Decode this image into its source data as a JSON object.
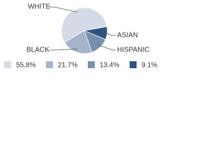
{
  "chart_data": {
    "type": "pie",
    "categories": [
      "WHITE",
      "BLACK",
      "HISPANIC",
      "ASIAN"
    ],
    "values": [
      55.8,
      21.7,
      13.4,
      9.1
    ],
    "value_labels": [
      "55.8%",
      "21.7%",
      "13.4%",
      "9.1%"
    ],
    "colors": [
      "#d4dbe6",
      "#a5b4c9",
      "#7890ad",
      "#2d5480"
    ]
  }
}
